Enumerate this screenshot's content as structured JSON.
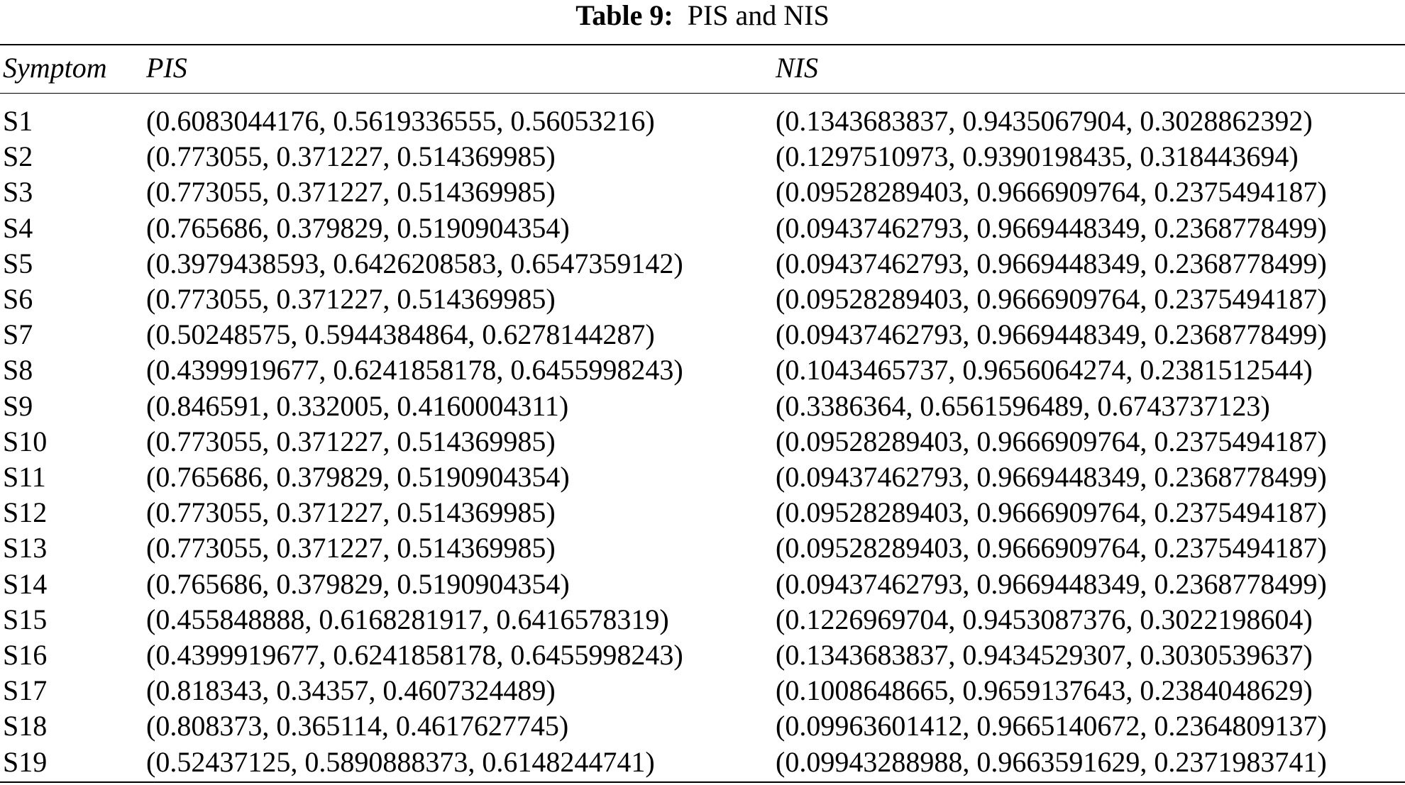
{
  "table": {
    "caption_label": "Table 9:",
    "caption_text": "PIS and NIS",
    "columns": [
      "Symptom",
      "PIS",
      "NIS"
    ],
    "rows": [
      [
        "S1",
        "(0.6083044176, 0.5619336555, 0.56053216)",
        "(0.1343683837, 0.9435067904, 0.3028862392)"
      ],
      [
        "S2",
        "(0.773055, 0.371227, 0.514369985)",
        "(0.1297510973, 0.9390198435, 0.318443694)"
      ],
      [
        "S3",
        "(0.773055, 0.371227, 0.514369985)",
        "(0.09528289403, 0.9666909764, 0.2375494187)"
      ],
      [
        "S4",
        "(0.765686, 0.379829, 0.5190904354)",
        "(0.09437462793, 0.9669448349, 0.2368778499)"
      ],
      [
        "S5",
        "(0.3979438593, 0.6426208583, 0.6547359142)",
        "(0.09437462793, 0.9669448349, 0.2368778499)"
      ],
      [
        "S6",
        "(0.773055, 0.371227, 0.514369985)",
        "(0.09528289403, 0.9666909764, 0.2375494187)"
      ],
      [
        "S7",
        "(0.50248575, 0.5944384864, 0.6278144287)",
        "(0.09437462793, 0.9669448349, 0.2368778499)"
      ],
      [
        "S8",
        "(0.4399919677, 0.6241858178, 0.6455998243)",
        "(0.1043465737, 0.9656064274, 0.2381512544)"
      ],
      [
        "S9",
        "(0.846591, 0.332005, 0.4160004311)",
        "(0.3386364, 0.6561596489, 0.6743737123)"
      ],
      [
        "S10",
        "(0.773055, 0.371227, 0.514369985)",
        "(0.09528289403, 0.9666909764, 0.2375494187)"
      ],
      [
        "S11",
        "(0.765686, 0.379829, 0.5190904354)",
        "(0.09437462793, 0.9669448349, 0.2368778499)"
      ],
      [
        "S12",
        "(0.773055, 0.371227, 0.514369985)",
        "(0.09528289403, 0.9666909764, 0.2375494187)"
      ],
      [
        "S13",
        "(0.773055, 0.371227, 0.514369985)",
        "(0.09528289403, 0.9666909764, 0.2375494187)"
      ],
      [
        "S14",
        "(0.765686, 0.379829, 0.5190904354)",
        "(0.09437462793, 0.9669448349, 0.2368778499)"
      ],
      [
        "S15",
        "(0.455848888, 0.6168281917, 0.6416578319)",
        "(0.1226969704, 0.9453087376, 0.3022198604)"
      ],
      [
        "S16",
        "(0.4399919677, 0.6241858178, 0.6455998243)",
        "(0.1343683837, 0.9434529307, 0.3030539637)"
      ],
      [
        "S17",
        "(0.818343, 0.34357, 0.4607324489)",
        "(0.1008648665, 0.9659137643, 0.2384048629)"
      ],
      [
        "S18",
        "(0.808373, 0.365114, 0.4617627745)",
        "(0.09963601412, 0.9665140672, 0.2364809137)"
      ],
      [
        "S19",
        "(0.52437125, 0.5890888373, 0.6148244741)",
        "(0.09943288988, 0.9663591629, 0.2371983741)"
      ]
    ]
  }
}
